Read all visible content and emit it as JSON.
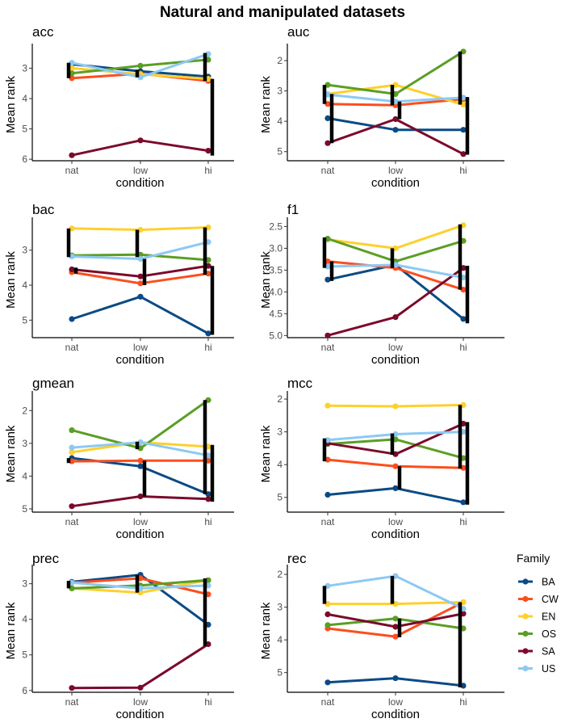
{
  "figure": {
    "title": "Natural and manipulated datasets"
  },
  "legend": {
    "title": "Family",
    "entries": [
      {
        "name": "BA",
        "color": "#0b4a85"
      },
      {
        "name": "CW",
        "color": "#fc4e1e"
      },
      {
        "name": "EN",
        "color": "#fdd02e"
      },
      {
        "name": "OS",
        "color": "#5b9e25"
      },
      {
        "name": "SA",
        "color": "#7b0a2b"
      },
      {
        "name": "US",
        "color": "#8dc9f3"
      }
    ]
  },
  "chart_data": [
    {
      "type": "line",
      "title": "acc",
      "xlabel": "condition",
      "ylabel": "Mean rank",
      "categories": [
        "nat",
        "low",
        "hi"
      ],
      "y_reversed": true,
      "ylim": [
        2.35,
        6.05
      ],
      "yticks": [
        "3",
        "4",
        "5",
        "6"
      ],
      "ytick_values": [
        3,
        4,
        5,
        6
      ],
      "series": [
        {
          "name": "BA",
          "values": [
            2.87,
            3.1,
            3.28
          ]
        },
        {
          "name": "CW",
          "values": [
            3.33,
            3.18,
            3.42
          ]
        },
        {
          "name": "EN",
          "values": [
            3.0,
            3.2,
            3.35
          ]
        },
        {
          "name": "OS",
          "values": [
            3.17,
            2.92,
            2.72
          ]
        },
        {
          "name": "SA",
          "values": [
            5.87,
            5.38,
            5.72
          ]
        },
        {
          "name": "US",
          "values": [
            2.82,
            3.3,
            2.53
          ]
        }
      ],
      "error_bars": [
        {
          "category": "nat",
          "low": 2.82,
          "high": 3.33
        },
        {
          "category": "low",
          "low": 3.05,
          "high": 3.3
        },
        {
          "category": "hi",
          "low": 2.5,
          "high": 3.42
        },
        {
          "category": "hi",
          "low": 3.35,
          "high": 5.88
        }
      ]
    },
    {
      "type": "line",
      "title": "auc",
      "xlabel": "condition",
      "ylabel": "Mean rank",
      "categories": [
        "nat",
        "low",
        "hi"
      ],
      "y_reversed": true,
      "ylim": [
        1.6,
        5.3
      ],
      "yticks": [
        "2",
        "3",
        "4",
        "5"
      ],
      "ytick_values": [
        2,
        3,
        4,
        5
      ],
      "series": [
        {
          "name": "BA",
          "values": [
            3.9,
            4.28,
            4.28
          ]
        },
        {
          "name": "CW",
          "values": [
            3.43,
            3.47,
            3.27
          ]
        },
        {
          "name": "EN",
          "values": [
            3.1,
            2.8,
            3.45
          ]
        },
        {
          "name": "OS",
          "values": [
            2.8,
            3.1,
            1.7
          ]
        },
        {
          "name": "SA",
          "values": [
            4.72,
            3.93,
            5.08
          ]
        },
        {
          "name": "US",
          "values": [
            3.12,
            3.35,
            3.22
          ]
        }
      ],
      "error_bars": [
        {
          "category": "nat",
          "low": 2.8,
          "high": 3.43
        },
        {
          "category": "nat",
          "low": 3.1,
          "high": 4.72
        },
        {
          "category": "low",
          "low": 2.8,
          "high": 3.47
        },
        {
          "category": "low",
          "low": 3.35,
          "high": 3.93
        },
        {
          "category": "hi",
          "low": 1.7,
          "high": 3.45
        },
        {
          "category": "hi",
          "low": 3.2,
          "high": 5.1
        }
      ]
    },
    {
      "type": "line",
      "title": "bac",
      "xlabel": "condition",
      "ylabel": "Mean rank",
      "categories": [
        "nat",
        "low",
        "hi"
      ],
      "y_reversed": true,
      "ylim": [
        2.2,
        5.5
      ],
      "yticks": [
        "3",
        "4",
        "5"
      ],
      "ytick_values": [
        3,
        4,
        5
      ],
      "series": [
        {
          "name": "BA",
          "values": [
            4.97,
            4.33,
            5.38
          ]
        },
        {
          "name": "CW",
          "values": [
            3.63,
            3.95,
            3.67
          ]
        },
        {
          "name": "EN",
          "values": [
            2.38,
            2.42,
            2.35
          ]
        },
        {
          "name": "OS",
          "values": [
            3.15,
            3.13,
            3.28
          ]
        },
        {
          "name": "SA",
          "values": [
            3.55,
            3.75,
            3.45
          ]
        },
        {
          "name": "US",
          "values": [
            3.18,
            3.25,
            2.77
          ]
        }
      ],
      "error_bars": [
        {
          "category": "nat",
          "low": 2.38,
          "high": 3.2
        },
        {
          "category": "nat",
          "low": 3.5,
          "high": 3.67
        },
        {
          "category": "low",
          "low": 2.42,
          "high": 3.2
        },
        {
          "category": "low",
          "low": 3.25,
          "high": 4.0
        },
        {
          "category": "hi",
          "low": 2.35,
          "high": 3.7
        },
        {
          "category": "hi",
          "low": 3.45,
          "high": 5.42
        }
      ]
    },
    {
      "type": "line",
      "title": "f1",
      "xlabel": "condition",
      "ylabel": "Mean rank",
      "categories": [
        "nat",
        "low",
        "hi"
      ],
      "y_reversed": true,
      "ylim": [
        2.4,
        5.05
      ],
      "yticks": [
        "2.5",
        "3.0",
        "3.5",
        "4.0",
        "4.5",
        "5.0"
      ],
      "ytick_values": [
        2.5,
        3.0,
        3.5,
        4.0,
        4.5,
        5.0
      ],
      "series": [
        {
          "name": "BA",
          "values": [
            3.72,
            3.38,
            4.62
          ]
        },
        {
          "name": "CW",
          "values": [
            3.3,
            3.45,
            3.95
          ]
        },
        {
          "name": "EN",
          "values": [
            2.8,
            3.0,
            2.47
          ]
        },
        {
          "name": "OS",
          "values": [
            2.78,
            3.3,
            2.83
          ]
        },
        {
          "name": "SA",
          "values": [
            5.0,
            4.58,
            3.45
          ]
        },
        {
          "name": "US",
          "values": [
            3.42,
            3.38,
            3.67
          ]
        }
      ],
      "error_bars": [
        {
          "category": "nat",
          "low": 2.75,
          "high": 3.45
        },
        {
          "category": "nat",
          "low": 3.3,
          "high": 3.75
        },
        {
          "category": "low",
          "low": 3.0,
          "high": 3.45
        },
        {
          "category": "hi",
          "low": 2.45,
          "high": 3.95
        },
        {
          "category": "hi",
          "low": 3.4,
          "high": 4.72
        }
      ]
    },
    {
      "type": "line",
      "title": "gmean",
      "xlabel": "condition",
      "ylabel": "Mean rank",
      "categories": [
        "nat",
        "low",
        "hi"
      ],
      "y_reversed": true,
      "ylim": [
        1.55,
        5.1
      ],
      "yticks": [
        "2",
        "3",
        "4",
        "5"
      ],
      "ytick_values": [
        2,
        3,
        4,
        5
      ],
      "series": [
        {
          "name": "BA",
          "values": [
            3.45,
            3.7,
            4.55
          ]
        },
        {
          "name": "CW",
          "values": [
            3.55,
            3.53,
            3.53
          ]
        },
        {
          "name": "EN",
          "values": [
            3.27,
            2.97,
            3.1
          ]
        },
        {
          "name": "OS",
          "values": [
            2.6,
            3.15,
            1.68
          ]
        },
        {
          "name": "SA",
          "values": [
            4.92,
            4.62,
            4.7
          ]
        },
        {
          "name": "US",
          "values": [
            3.13,
            2.97,
            3.37
          ]
        }
      ],
      "error_bars": [
        {
          "category": "nat",
          "low": 3.45,
          "high": 3.6
        },
        {
          "category": "low",
          "low": 2.95,
          "high": 3.18
        },
        {
          "category": "low",
          "low": 3.53,
          "high": 4.62
        },
        {
          "category": "hi",
          "low": 1.68,
          "high": 4.55
        },
        {
          "category": "hi",
          "low": 3.05,
          "high": 4.78
        }
      ]
    },
    {
      "type": "line",
      "title": "mcc",
      "xlabel": "condition",
      "ylabel": "Mean rank",
      "categories": [
        "nat",
        "low",
        "hi"
      ],
      "y_reversed": true,
      "ylim": [
        1.9,
        5.45
      ],
      "yticks": [
        "2",
        "3",
        "4",
        "5"
      ],
      "ytick_values": [
        2,
        3,
        4,
        5
      ],
      "series": [
        {
          "name": "BA",
          "values": [
            4.92,
            4.72,
            5.15
          ]
        },
        {
          "name": "CW",
          "values": [
            3.85,
            4.05,
            4.1
          ]
        },
        {
          "name": "EN",
          "values": [
            2.2,
            2.22,
            2.18
          ]
        },
        {
          "name": "OS",
          "values": [
            3.37,
            3.23,
            3.8
          ]
        },
        {
          "name": "SA",
          "values": [
            3.35,
            3.68,
            2.75
          ]
        },
        {
          "name": "US",
          "values": [
            3.25,
            3.07,
            3.0
          ]
        }
      ],
      "error_bars": [
        {
          "category": "nat",
          "low": 3.2,
          "high": 3.9
        },
        {
          "category": "low",
          "low": 3.05,
          "high": 3.7
        },
        {
          "category": "low",
          "low": 4.05,
          "high": 4.75
        },
        {
          "category": "hi",
          "low": 2.18,
          "high": 4.12
        },
        {
          "category": "hi",
          "low": 2.7,
          "high": 5.22
        }
      ]
    },
    {
      "type": "line",
      "title": "prec",
      "xlabel": "condition",
      "ylabel": "Mean rank",
      "categories": [
        "nat",
        "low",
        "hi"
      ],
      "y_reversed": true,
      "ylim": [
        2.6,
        6.05
      ],
      "yticks": [
        "3",
        "4",
        "5",
        "6"
      ],
      "ytick_values": [
        3,
        4,
        5,
        6
      ],
      "series": [
        {
          "name": "BA",
          "values": [
            2.95,
            2.75,
            4.15
          ]
        },
        {
          "name": "CW",
          "values": [
            2.97,
            2.85,
            3.3
          ]
        },
        {
          "name": "EN",
          "values": [
            3.13,
            3.25,
            2.9
          ]
        },
        {
          "name": "OS",
          "values": [
            3.13,
            3.05,
            2.9
          ]
        },
        {
          "name": "SA",
          "values": [
            5.93,
            5.92,
            4.7
          ]
        },
        {
          "name": "US",
          "values": [
            2.97,
            3.13,
            3.05
          ]
        }
      ],
      "error_bars": [
        {
          "category": "nat",
          "low": 2.92,
          "high": 3.13
        },
        {
          "category": "low",
          "low": 2.75,
          "high": 3.25
        },
        {
          "category": "hi",
          "low": 2.85,
          "high": 4.75
        }
      ]
    },
    {
      "type": "line",
      "title": "rec",
      "xlabel": "condition",
      "ylabel": "Mean rank",
      "categories": [
        "nat",
        "low",
        "hi"
      ],
      "y_reversed": true,
      "ylim": [
        1.85,
        5.6
      ],
      "yticks": [
        "2",
        "3",
        "4",
        "5"
      ],
      "ytick_values": [
        2,
        3,
        4,
        5
      ],
      "series": [
        {
          "name": "BA",
          "values": [
            5.3,
            5.17,
            5.4
          ]
        },
        {
          "name": "CW",
          "values": [
            3.65,
            3.9,
            2.85
          ]
        },
        {
          "name": "EN",
          "values": [
            2.9,
            2.9,
            2.85
          ]
        },
        {
          "name": "OS",
          "values": [
            3.55,
            3.35,
            3.65
          ]
        },
        {
          "name": "SA",
          "values": [
            3.22,
            3.6,
            3.2
          ]
        },
        {
          "name": "US",
          "values": [
            2.35,
            2.05,
            3.05
          ]
        }
      ],
      "error_bars": [
        {
          "category": "nat",
          "low": 2.35,
          "high": 2.9
        },
        {
          "category": "low",
          "low": 2.05,
          "high": 2.9
        },
        {
          "category": "low",
          "low": 3.35,
          "high": 3.92
        },
        {
          "category": "hi",
          "low": 2.85,
          "high": 5.45
        }
      ]
    }
  ]
}
